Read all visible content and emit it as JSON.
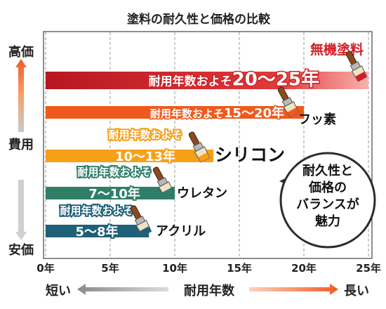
{
  "chart_data": {
    "type": "bar",
    "orientation": "horizontal",
    "title": "塗料の耐久性と価格の比較",
    "xlabel": "耐用年数",
    "x_label_left": "短い",
    "x_label_right": "長い",
    "ylabel": "費用",
    "y_top_label": "高価",
    "y_bottom_label": "安価",
    "xlim": [
      0,
      26
    ],
    "x_ticks": [
      0,
      5,
      10,
      15,
      20,
      25
    ],
    "x_tick_labels": [
      "0年",
      "5年",
      "10年",
      "15年",
      "20年",
      "25年"
    ],
    "grid": "vertical",
    "categories": [
      "無機塗料",
      "フッ素",
      "シリコン",
      "ウレタン",
      "アクリル"
    ],
    "series": [
      {
        "values": [
          25,
          20,
          13,
          10,
          8
        ],
        "ranges": [
          [
            20,
            25
          ],
          [
            15,
            20
          ],
          [
            10,
            13
          ],
          [
            7,
            10
          ],
          [
            5,
            8
          ]
        ],
        "label_prefix": "耐用年数およそ",
        "labels": [
          "20～25年",
          "15～20年",
          "10～13年",
          "7～10年",
          "5～8年"
        ],
        "colors": [
          "#d21f26",
          "#ef5a1c",
          "#f6a01a",
          "#2f7f68",
          "#1f6079"
        ]
      }
    ],
    "annotation": [
      "耐久性と",
      "価格の",
      "バランスが",
      "魅力"
    ]
  }
}
